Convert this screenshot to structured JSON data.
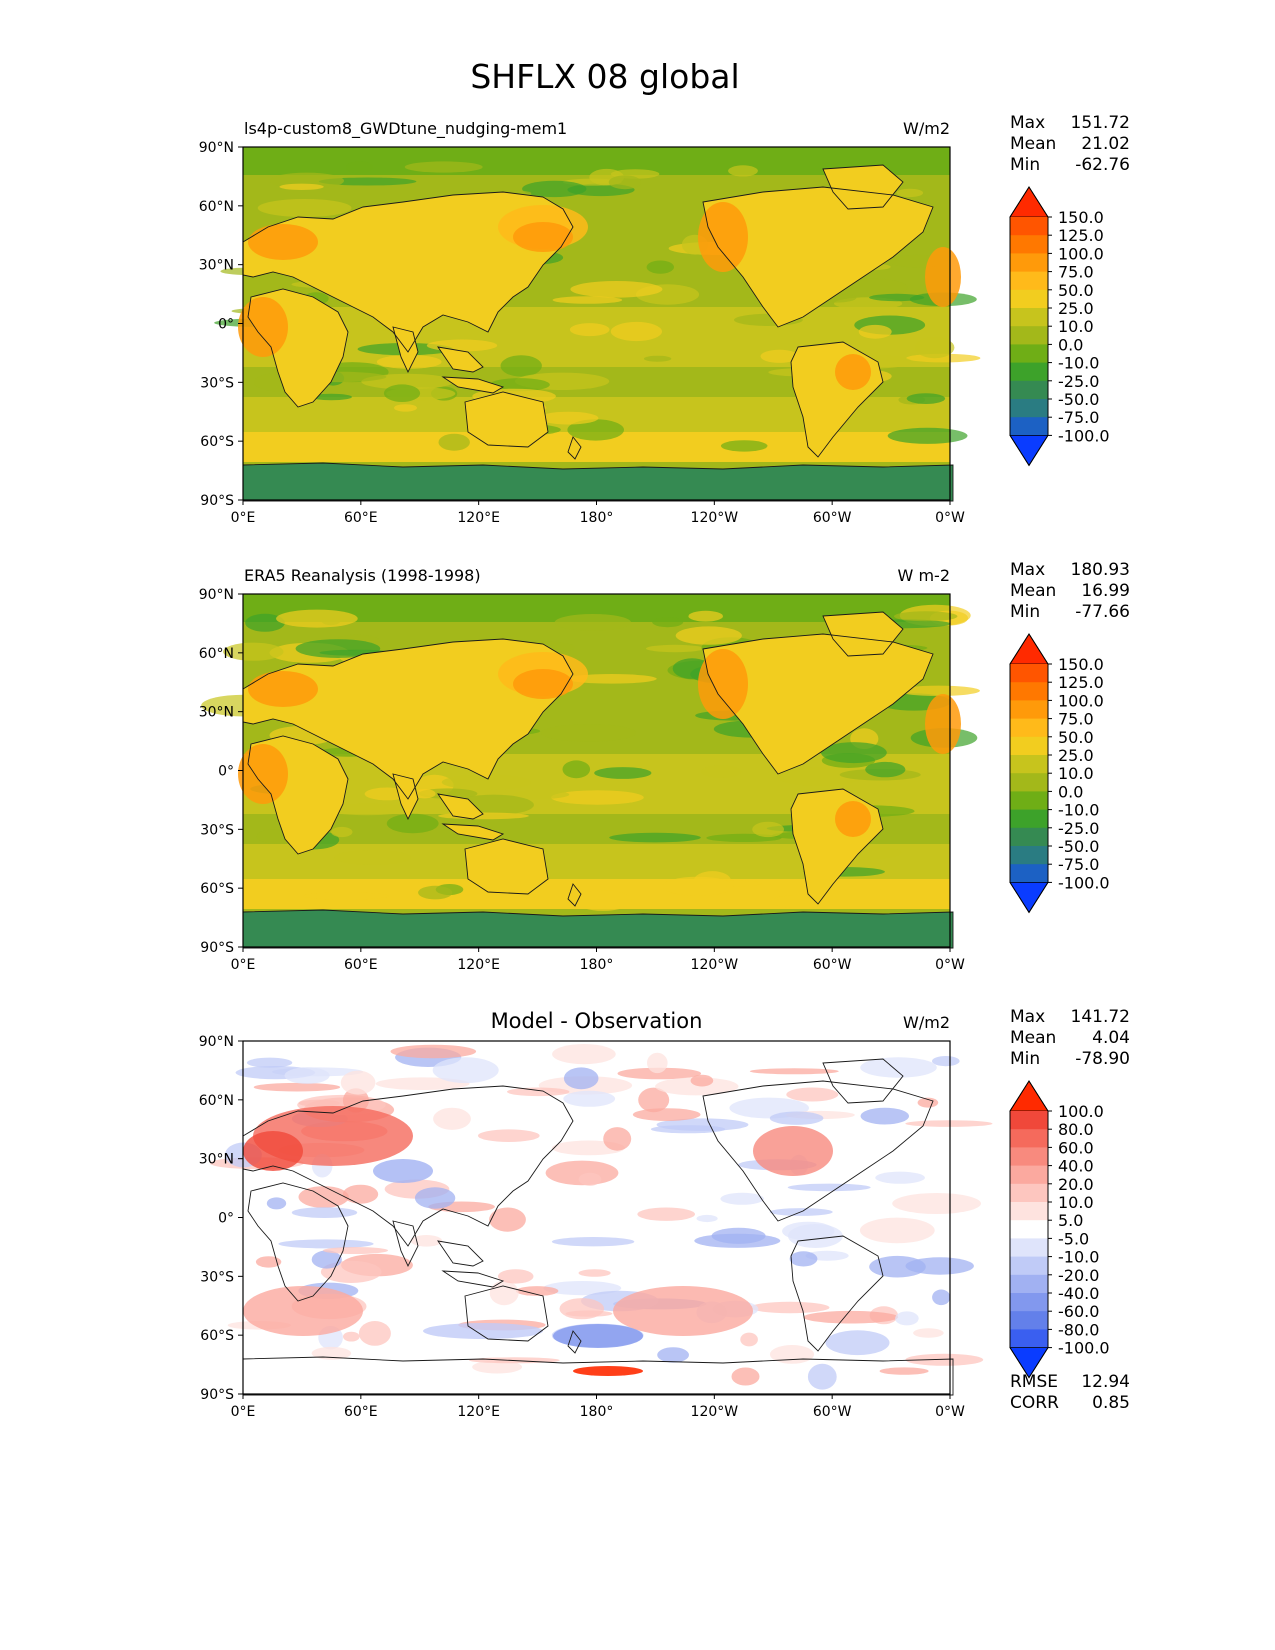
{
  "title": "SHFLX 08 global",
  "lat_ticks": [
    "90°N",
    "60°N",
    "30°N",
    "0°",
    "30°S",
    "60°S",
    "90°S"
  ],
  "lon_ticks": [
    "0°E",
    "60°E",
    "120°E",
    "180°",
    "120°W",
    "60°W",
    "0°W"
  ],
  "panels": [
    {
      "left_title": "ls4p-custom8_GWDtune_nudging-mem1",
      "center_title": "",
      "units": "W/m2",
      "stats": [
        {
          "label": "Max",
          "value": "151.72"
        },
        {
          "label": "Mean",
          "value": "21.02"
        },
        {
          "label": "Min",
          "value": "-62.76"
        }
      ],
      "colorbar": {
        "ticks": [
          "150.0",
          "125.0",
          "100.0",
          "75.0",
          "50.0",
          "25.0",
          "10.0",
          "0.0",
          "-10.0",
          "-25.0",
          "-50.0",
          "-75.0",
          "-100.0"
        ],
        "colors": [
          "#ff2a00",
          "#ff5500",
          "#ff7800",
          "#ff9a0a",
          "#ffba1a",
          "#f2cd1f",
          "#c7c41d",
          "#a3b81a",
          "#6fae16",
          "#3da22a",
          "#358a52",
          "#2a7c82",
          "#1c61c4",
          "#0a3cff"
        ],
        "top_color": "#ff2a00",
        "bottom_color": "#0a3cff"
      },
      "extra_stats": []
    },
    {
      "left_title": "ERA5 Reanalysis (1998-1998)",
      "center_title": "",
      "units": "W m-2",
      "stats": [
        {
          "label": "Max",
          "value": "180.93"
        },
        {
          "label": "Mean",
          "value": "16.99"
        },
        {
          "label": "Min",
          "value": "-77.66"
        }
      ],
      "colorbar": {
        "ticks": [
          "150.0",
          "125.0",
          "100.0",
          "75.0",
          "50.0",
          "25.0",
          "10.0",
          "0.0",
          "-10.0",
          "-25.0",
          "-50.0",
          "-75.0",
          "-100.0"
        ],
        "colors": [
          "#ff2a00",
          "#ff5500",
          "#ff7800",
          "#ff9a0a",
          "#ffba1a",
          "#f2cd1f",
          "#c7c41d",
          "#a3b81a",
          "#6fae16",
          "#3da22a",
          "#358a52",
          "#2a7c82",
          "#1c61c4",
          "#0a3cff"
        ],
        "top_color": "#ff2a00",
        "bottom_color": "#0a3cff"
      },
      "extra_stats": []
    },
    {
      "left_title": "",
      "center_title": "Model - Observation",
      "units": "W/m2",
      "stats": [
        {
          "label": "Max",
          "value": "141.72"
        },
        {
          "label": "Mean",
          "value": "4.04"
        },
        {
          "label": "Min",
          "value": "-78.90"
        }
      ],
      "colorbar": {
        "ticks": [
          "100.0",
          "80.0",
          "60.0",
          "40.0",
          "20.0",
          "10.0",
          "5.0",
          "-5.0",
          "-10.0",
          "-20.0",
          "-40.0",
          "-60.0",
          "-80.0",
          "-100.0"
        ],
        "colors": [
          "#ff2a00",
          "#f0483a",
          "#f56a5c",
          "#f88a7e",
          "#fba99f",
          "#fdc6bf",
          "#fee3df",
          "#ffffff",
          "#dfe4fb",
          "#c0cbf7",
          "#a1b1f2",
          "#8298ee",
          "#6380ea",
          "#3a5ff0",
          "#0a3cff"
        ],
        "top_color": "#ff2a00",
        "bottom_color": "#0a3cff"
      },
      "extra_stats": [
        {
          "label": "RMSE",
          "value": "12.94"
        },
        {
          "label": "CORR",
          "value": "0.85"
        }
      ]
    }
  ]
}
